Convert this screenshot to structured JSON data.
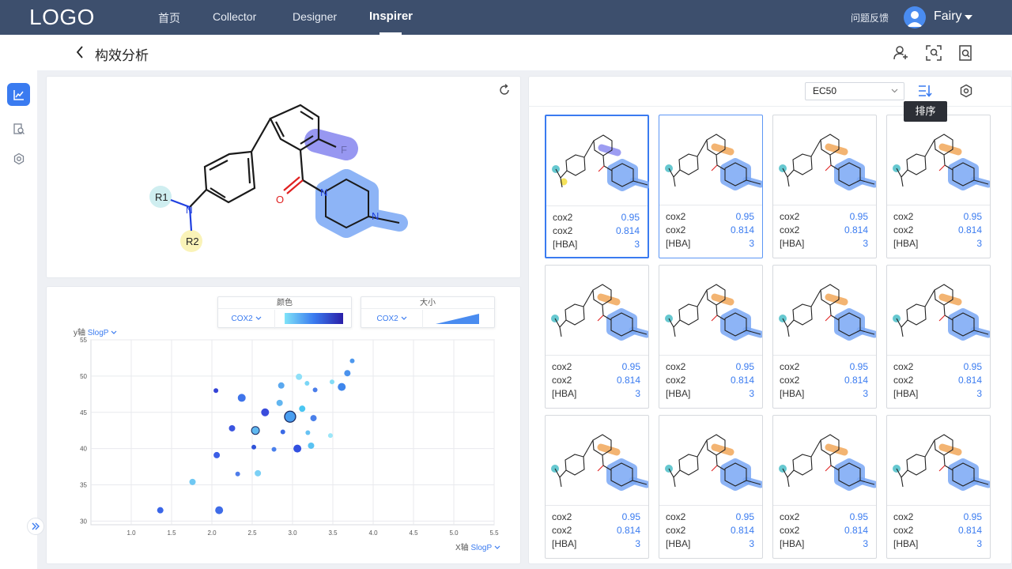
{
  "nav": {
    "logo": "LOGO",
    "items": [
      "首页",
      "Collector",
      "Designer",
      "Inspirer"
    ],
    "active_index": 3,
    "feedback": "问题反馈",
    "username": "Fairy"
  },
  "header": {
    "title": "构效分析"
  },
  "molecule": {
    "r1": "R1",
    "r2": "R2",
    "n_amine": "N",
    "o_carbonyl": "O",
    "fluorine": "F",
    "n_pip1": "N",
    "n_pip2": "N"
  },
  "chart_controls": {
    "color": {
      "title": "颜色",
      "select": "COX2"
    },
    "size": {
      "title": "大小",
      "select": "COX2"
    },
    "y_axis": {
      "label": "y轴",
      "select": "SlogP"
    },
    "x_axis": {
      "label": "X轴",
      "select": "SlogP"
    }
  },
  "chart_data": {
    "type": "scatter",
    "xlabel": "SlogP",
    "ylabel": "SlogP",
    "xlim": [
      0.5,
      5.5
    ],
    "ylim": [
      29.5,
      55
    ],
    "x_ticks": [
      "1.0",
      "1.5",
      "2.0",
      "2.5",
      "3.0",
      "3.5",
      "4.0",
      "4.5",
      "5.0",
      "5.5"
    ],
    "y_ticks": [
      "30",
      "35",
      "40",
      "45",
      "50",
      "55"
    ],
    "grid": true,
    "points": [
      {
        "x": 1.36,
        "y": 31.5,
        "s": 4,
        "c": "#3a66e8"
      },
      {
        "x": 1.76,
        "y": 35.4,
        "s": 4,
        "c": "#6fc8f3"
      },
      {
        "x": 2.09,
        "y": 31.5,
        "s": 5,
        "c": "#3f6ce8"
      },
      {
        "x": 2.06,
        "y": 39.1,
        "s": 4,
        "c": "#3b5ee6"
      },
      {
        "x": 2.05,
        "y": 48.0,
        "s": 3,
        "c": "#3443d6"
      },
      {
        "x": 2.25,
        "y": 42.8,
        "s": 4,
        "c": "#3b55e0"
      },
      {
        "x": 2.32,
        "y": 36.5,
        "s": 3,
        "c": "#4e7cea"
      },
      {
        "x": 2.37,
        "y": 47.0,
        "s": 5,
        "c": "#3f74ea"
      },
      {
        "x": 2.52,
        "y": 40.2,
        "s": 3,
        "c": "#2f52d8"
      },
      {
        "x": 2.54,
        "y": 42.5,
        "s": 5,
        "c": "#5fb8f0"
      },
      {
        "x": 2.57,
        "y": 36.6,
        "s": 4,
        "c": "#7bd0f5"
      },
      {
        "x": 2.66,
        "y": 45.0,
        "s": 5,
        "c": "#3a4cdc"
      },
      {
        "x": 2.77,
        "y": 39.9,
        "s": 3,
        "c": "#4a80ec"
      },
      {
        "x": 2.84,
        "y": 46.3,
        "s": 4,
        "c": "#62b6f0"
      },
      {
        "x": 2.86,
        "y": 48.7,
        "s": 4,
        "c": "#5aa8ef"
      },
      {
        "x": 2.88,
        "y": 42.3,
        "s": 3,
        "c": "#3a6ae6"
      },
      {
        "x": 2.97,
        "y": 44.4,
        "s": 7,
        "c": "#4a9ef0"
      },
      {
        "x": 3.06,
        "y": 40.0,
        "s": 5,
        "c": "#3250e0"
      },
      {
        "x": 3.08,
        "y": 49.9,
        "s": 4,
        "c": "#8fe0f8"
      },
      {
        "x": 3.12,
        "y": 45.5,
        "s": 4,
        "c": "#4ac6f2"
      },
      {
        "x": 3.18,
        "y": 49.0,
        "s": 3,
        "c": "#7ad6f6"
      },
      {
        "x": 3.19,
        "y": 42.2,
        "s": 3,
        "c": "#67c2f3"
      },
      {
        "x": 3.23,
        "y": 40.4,
        "s": 4,
        "c": "#59c2f2"
      },
      {
        "x": 3.26,
        "y": 44.2,
        "s": 4,
        "c": "#4a80ea"
      },
      {
        "x": 3.28,
        "y": 48.1,
        "s": 3,
        "c": "#4b7eea"
      },
      {
        "x": 3.47,
        "y": 41.8,
        "s": 3,
        "c": "#9be6f8"
      },
      {
        "x": 3.49,
        "y": 49.2,
        "s": 3,
        "c": "#84dcf6"
      },
      {
        "x": 3.61,
        "y": 48.5,
        "s": 5,
        "c": "#3f86ec"
      },
      {
        "x": 3.68,
        "y": 50.4,
        "s": 4,
        "c": "#4b93ed"
      },
      {
        "x": 3.74,
        "y": 52.1,
        "s": 3,
        "c": "#4e98ee"
      }
    ]
  },
  "right": {
    "metric_select": "EC50",
    "tooltip": "排序"
  },
  "cards": [
    {
      "rows": [
        [
          "cox2",
          "0.95"
        ],
        [
          "cox2",
          "0.814"
        ],
        [
          "[HBA]",
          "3"
        ]
      ]
    },
    {
      "rows": [
        [
          "cox2",
          "0.95"
        ],
        [
          "cox2",
          "0.814"
        ],
        [
          "[HBA]",
          "3"
        ]
      ]
    },
    {
      "rows": [
        [
          "cox2",
          "0.95"
        ],
        [
          "cox2",
          "0.814"
        ],
        [
          "[HBA]",
          "3"
        ]
      ]
    },
    {
      "rows": [
        [
          "cox2",
          "0.95"
        ],
        [
          "cox2",
          "0.814"
        ],
        [
          "[HBA]",
          "3"
        ]
      ]
    },
    {
      "rows": [
        [
          "cox2",
          "0.95"
        ],
        [
          "cox2",
          "0.814"
        ],
        [
          "[HBA]",
          "3"
        ]
      ]
    },
    {
      "rows": [
        [
          "cox2",
          "0.95"
        ],
        [
          "cox2",
          "0.814"
        ],
        [
          "[HBA]",
          "3"
        ]
      ]
    },
    {
      "rows": [
        [
          "cox2",
          "0.95"
        ],
        [
          "cox2",
          "0.814"
        ],
        [
          "[HBA]",
          "3"
        ]
      ]
    },
    {
      "rows": [
        [
          "cox2",
          "0.95"
        ],
        [
          "cox2",
          "0.814"
        ],
        [
          "[HBA]",
          "3"
        ]
      ]
    },
    {
      "rows": [
        [
          "cox2",
          "0.95"
        ],
        [
          "cox2",
          "0.814"
        ],
        [
          "[HBA]",
          "3"
        ]
      ]
    },
    {
      "rows": [
        [
          "cox2",
          "0.95"
        ],
        [
          "cox2",
          "0.814"
        ],
        [
          "[HBA]",
          "3"
        ]
      ]
    },
    {
      "rows": [
        [
          "cox2",
          "0.95"
        ],
        [
          "cox2",
          "0.814"
        ],
        [
          "[HBA]",
          "3"
        ]
      ]
    },
    {
      "rows": [
        [
          "cox2",
          "0.95"
        ],
        [
          "cox2",
          "0.814"
        ],
        [
          "[HBA]",
          "3"
        ]
      ]
    }
  ],
  "colors": {
    "nav_bg": "#3d4f6d",
    "accent": "#3a7bf0",
    "highlight_blue": "#7aa8f5",
    "highlight_orange": "#f2a85a",
    "highlight_purple": "#8c8cf0",
    "r1_teal": "#66c8d0",
    "r2_yellow": "#f5e25a"
  }
}
